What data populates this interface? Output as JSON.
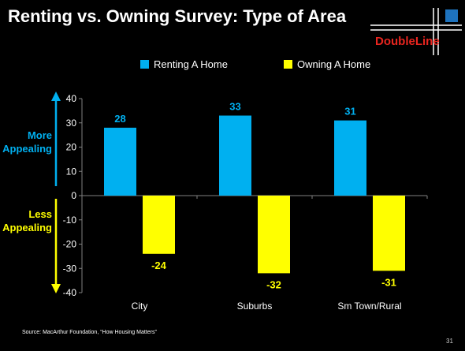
{
  "title": "Renting vs. Owning Survey: Type of Area",
  "logo": {
    "text": "DoubleLine"
  },
  "side_labels": {
    "top": "More\nAppealing",
    "bottom": "Less\nAppealing"
  },
  "source": "Source: MacArthur Foundation, “How Housing Matters”",
  "page_number": "31",
  "colors": {
    "renting": "#00b0f0",
    "owning": "#ffff00",
    "axis": "#808080",
    "logo_red": "#e8251f"
  },
  "chart_data": {
    "type": "bar",
    "categories": [
      "City",
      "Suburbs",
      "Sm Town/Rural"
    ],
    "series": [
      {
        "name": "Renting A Home",
        "values": [
          28,
          33,
          31
        ],
        "labels": [
          "28",
          "33",
          "31"
        ]
      },
      {
        "name": "Owning A Home",
        "values": [
          -24,
          -32,
          -31
        ],
        "labels": [
          "-24",
          "-32",
          "-31"
        ]
      }
    ],
    "ylim": [
      -40,
      40
    ],
    "yticks": [
      "40",
      "30",
      "20",
      "10",
      "0",
      "-10",
      "-20",
      "-30",
      "-40"
    ],
    "ytick_values": [
      40,
      30,
      20,
      10,
      0,
      -10,
      -20,
      -30,
      -40
    ],
    "legend": "top",
    "grid": false
  }
}
